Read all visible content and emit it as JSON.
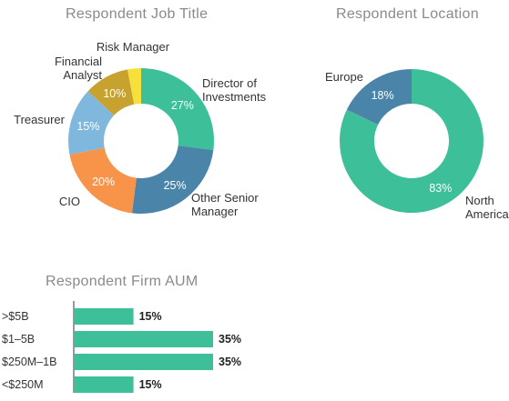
{
  "chart_data": [
    {
      "type": "pie",
      "variant": "donut",
      "title": "Respondent Job Title",
      "categories": [
        "Director of Investments",
        "Other Senior Manager",
        "CIO",
        "Treasurer",
        "Financial Analyst",
        "Risk Manager"
      ],
      "label_lines": [
        [
          "Director of",
          "Investments"
        ],
        [
          "Other Senior",
          "Manager"
        ],
        [
          "CIO"
        ],
        [
          "Treasurer"
        ],
        [
          "Financial",
          "Analyst"
        ],
        [
          "Risk Manager"
        ]
      ],
      "values": [
        27,
        25,
        20,
        15,
        10,
        3
      ],
      "value_labels": [
        "27%",
        "25%",
        "20%",
        "15%",
        "10%",
        "3%"
      ],
      "colors": [
        "#3dbf9a",
        "#4a84a8",
        "#f7944a",
        "#80b8dd",
        "#c8a22e",
        "#f5e13a"
      ]
    },
    {
      "type": "pie",
      "variant": "donut",
      "title": "Respondent Location",
      "categories": [
        "North America",
        "Europe"
      ],
      "label_lines": [
        [
          "North",
          "America"
        ],
        [
          "Europe"
        ]
      ],
      "values": [
        83,
        18
      ],
      "value_labels": [
        "83%",
        "18%"
      ],
      "colors": [
        "#3dbf9a",
        "#4a84a8"
      ]
    },
    {
      "type": "bar",
      "orientation": "horizontal",
      "title": "Respondent Firm AUM",
      "categories": [
        ">$5B",
        "$1–5B",
        "$250M–1B",
        "<$250M"
      ],
      "values": [
        15,
        35,
        35,
        15
      ],
      "value_labels": [
        "15%",
        "35%",
        "35%",
        "15%"
      ],
      "xlim": [
        0,
        35
      ],
      "color": "#3dbf9a",
      "axis_color": "#333333"
    }
  ]
}
